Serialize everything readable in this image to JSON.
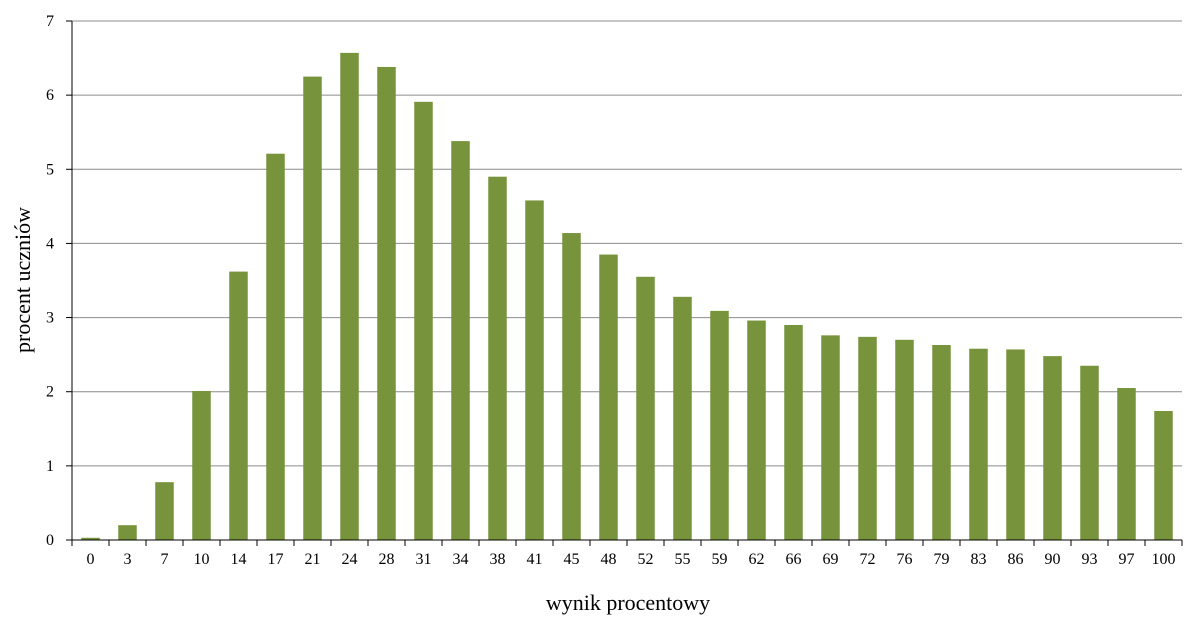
{
  "chart_data": {
    "type": "bar",
    "title": "",
    "xlabel": "wynik procentowy",
    "ylabel": "procent uczniów",
    "ylim": [
      0,
      7
    ],
    "yticks": [
      "0",
      "1",
      "2",
      "3",
      "4",
      "5",
      "6",
      "7"
    ],
    "grid": true,
    "legend": "none",
    "bar_color": "#77933c",
    "categories": [
      "0",
      "3",
      "7",
      "10",
      "14",
      "17",
      "21",
      "24",
      "28",
      "31",
      "34",
      "38",
      "41",
      "45",
      "48",
      "52",
      "55",
      "59",
      "62",
      "66",
      "69",
      "72",
      "76",
      "79",
      "83",
      "86",
      "90",
      "93",
      "97",
      "100"
    ],
    "values": [
      0.03,
      0.2,
      0.78,
      2.01,
      3.62,
      5.21,
      6.25,
      6.57,
      6.38,
      5.91,
      5.38,
      4.9,
      4.58,
      4.14,
      3.85,
      3.55,
      3.28,
      3.09,
      2.96,
      2.9,
      2.76,
      2.74,
      2.7,
      2.63,
      2.58,
      2.57,
      2.48,
      2.35,
      2.05,
      1.74
    ]
  }
}
